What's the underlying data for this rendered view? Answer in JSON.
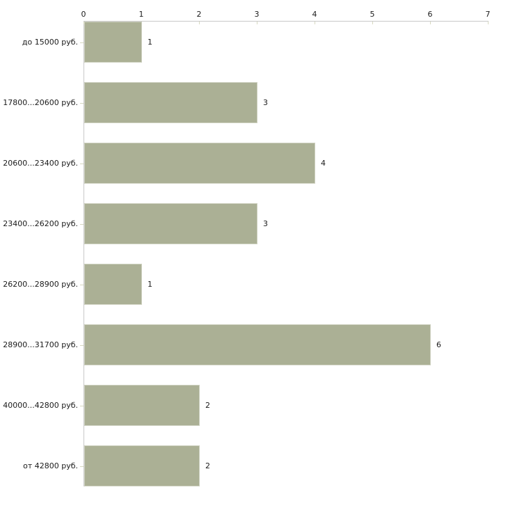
{
  "chart_data": {
    "type": "bar",
    "orientation": "horizontal",
    "categories": [
      "до 15000 руб.",
      "17800...20600 руб.",
      "20600...23400 руб.",
      "23400...26200 руб.",
      "26200...28900 руб.",
      "28900...31700 руб.",
      "40000...42800 руб.",
      "от 42800 руб."
    ],
    "values": [
      1,
      3,
      4,
      3,
      1,
      6,
      2,
      2
    ],
    "value_labels": [
      "1",
      "3",
      "4",
      "3",
      "1",
      "6",
      "2",
      "2"
    ],
    "x_tick_labels": [
      "0",
      "1",
      "2",
      "3",
      "4",
      "5",
      "6",
      "7"
    ],
    "xlim": [
      0,
      7
    ],
    "title": "",
    "xlabel": "",
    "ylabel": "",
    "legend": null,
    "grid": false,
    "axis_position": "top",
    "colors": {
      "bar_fill": "#abb095",
      "bar_border": "#ced1c0",
      "axis_line": "#c9c9c9",
      "axis_tick": "#d6d8c0",
      "text": "#1a1a1a",
      "background": "#ffffff"
    }
  }
}
